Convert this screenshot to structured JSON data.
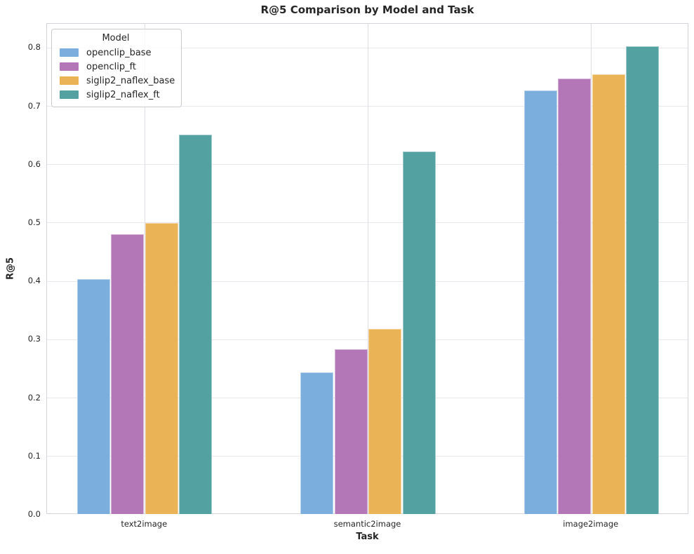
{
  "figure": {
    "title": "R@5 Comparison by Model and Task"
  },
  "chart_data": {
    "type": "bar",
    "title": "R@5 Comparison by Model and Task",
    "xlabel": "Task",
    "ylabel": "R@5",
    "categories": [
      "text2image",
      "semantic2image",
      "image2image"
    ],
    "series": [
      {
        "name": "openclip_base",
        "color": "#7BAEDC",
        "values": [
          0.404,
          0.244,
          0.727
        ]
      },
      {
        "name": "openclip_ft",
        "color": "#B376B6",
        "values": [
          0.481,
          0.284,
          0.747
        ]
      },
      {
        "name": "siglip2_naflex_base",
        "color": "#EAB355",
        "values": [
          0.5,
          0.319,
          0.755
        ]
      },
      {
        "name": "siglip2_naflex_ft",
        "color": "#54A1A2",
        "values": [
          0.651,
          0.623,
          0.803
        ]
      }
    ],
    "yticks": [
      0.0,
      0.1,
      0.2,
      0.3,
      0.4,
      0.5,
      0.6,
      0.7,
      0.8
    ],
    "ylim": [
      0,
      0.8413
    ],
    "grid": true,
    "legend": {
      "title": "Model",
      "position": "upper left"
    }
  }
}
